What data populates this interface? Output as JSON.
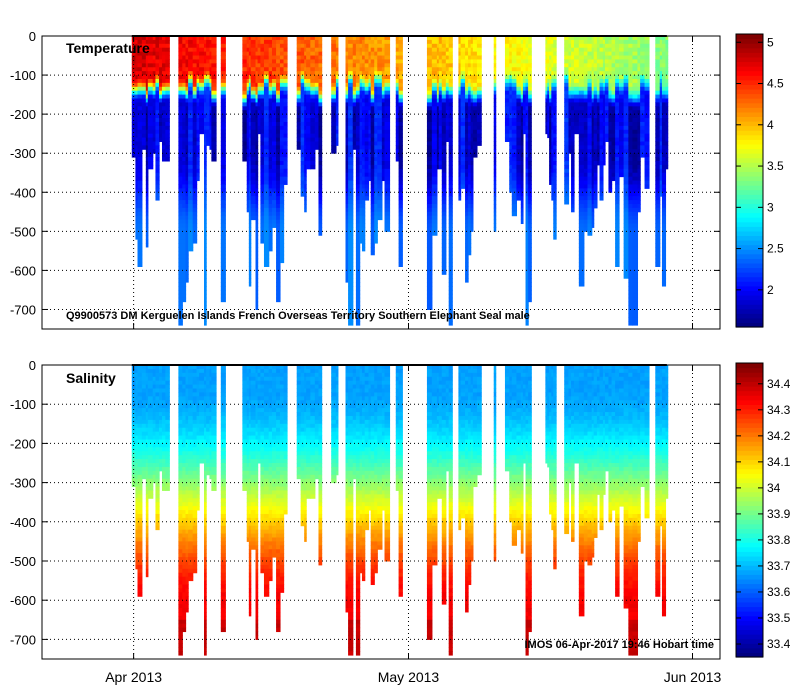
{
  "chart_data": [
    {
      "type": "heatmap",
      "title": "Temperature",
      "annotation": "Q9900573 DM Kerguelen Islands French Overseas Territory Southern Elephant Seal  male",
      "xlabel": "",
      "ylabel": "",
      "x_ticks": [
        "Apr 2013",
        "May 2013",
        "Jun 2013"
      ],
      "x_tick_days": [
        0,
        30,
        61
      ],
      "xlim_days": [
        -10,
        64
      ],
      "y_ticks": [
        0,
        -100,
        -200,
        -300,
        -400,
        -500,
        -600,
        -700
      ],
      "ylim": [
        -750,
        0
      ],
      "colorbar": {
        "min": 1.55,
        "max": 5.1,
        "ticks": [
          2,
          2.5,
          3,
          3.5,
          4,
          4.5,
          5
        ],
        "tick_labels": [
          "2",
          "2.5",
          "3",
          "3.5",
          "4",
          "4.5",
          "5"
        ]
      },
      "profile_start_day": -0.2,
      "profile_end_day": 58.2,
      "profile_depth_range": [
        -740,
        -220
      ],
      "mixed_layer_depth_range": [
        -150,
        -90
      ],
      "surface_value_range": [
        3.3,
        4.8
      ],
      "deep_value_range": [
        2.3,
        2.5
      ],
      "core_min_value": 1.6,
      "grid": true
    },
    {
      "type": "heatmap",
      "title": "Salinity",
      "annotation": "IMOS 06-Apr-2017 19:46 Hobart time",
      "xlabel": "",
      "ylabel": "",
      "x_ticks": [
        "Apr 2013",
        "May 2013",
        "Jun 2013"
      ],
      "x_tick_days": [
        0,
        30,
        61
      ],
      "xlim_days": [
        -10,
        64
      ],
      "y_ticks": [
        0,
        -100,
        -200,
        -300,
        -400,
        -500,
        -600,
        -700
      ],
      "ylim": [
        -750,
        0
      ],
      "colorbar": {
        "min": 33.35,
        "max": 34.48,
        "ticks": [
          33.4,
          33.5,
          33.6,
          33.7,
          33.8,
          33.9,
          34,
          34.1,
          34.2,
          34.3,
          34.4
        ],
        "tick_labels": [
          "33.4",
          "33.5",
          "33.6",
          "33.7",
          "33.8",
          "33.9",
          "34",
          "34.1",
          "34.2",
          "34.3",
          "34.4"
        ]
      },
      "profile_start_day": -0.2,
      "profile_end_day": 58.2,
      "profile_depth_range": [
        -740,
        -220
      ],
      "surface_value": 33.67,
      "deep_value": 34.35,
      "grid": true
    }
  ]
}
